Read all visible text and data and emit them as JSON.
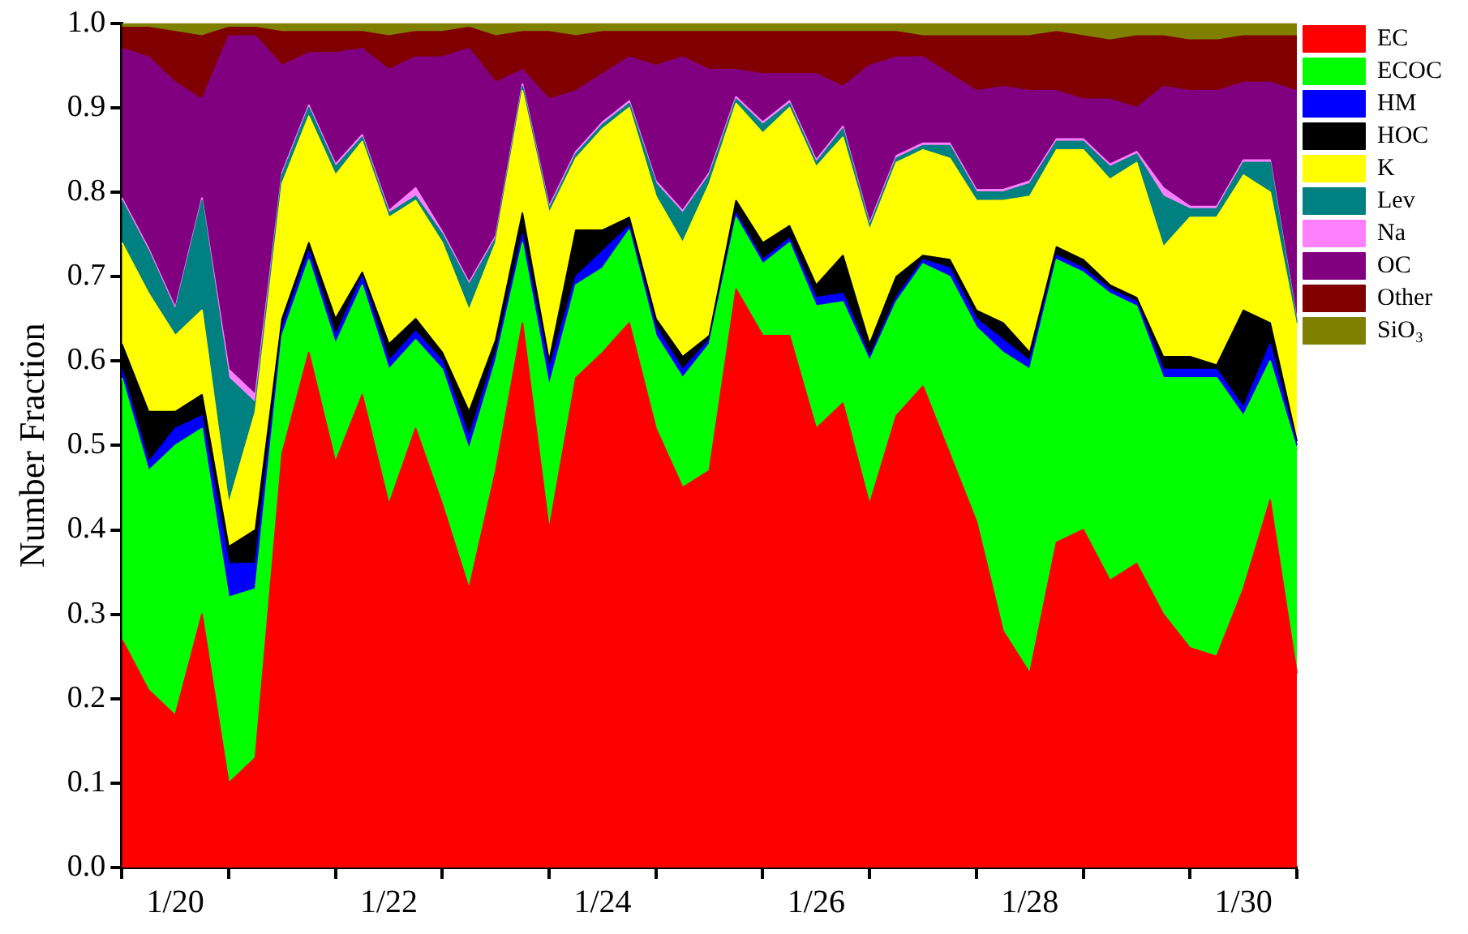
{
  "chart_data": {
    "type": "area",
    "stacked": true,
    "ylabel": "Number Fraction",
    "legend": "right",
    "grid": false,
    "categories": [
      null,
      null,
      "1/20",
      null,
      null,
      null,
      null,
      null,
      null,
      null,
      "1/22",
      null,
      null,
      null,
      null,
      null,
      null,
      null,
      "1/24",
      null,
      null,
      null,
      null,
      null,
      null,
      null,
      "1/26",
      null,
      null,
      null,
      null,
      null,
      null,
      null,
      "1/28",
      null,
      null,
      null,
      null,
      null,
      null,
      null,
      "1/30",
      null,
      null
    ],
    "ylim": [
      0,
      1
    ],
    "yticks": [
      {
        "value": 0,
        "label": "0.0"
      },
      0.1,
      0.2,
      0.3,
      0.4,
      0.5,
      0.6,
      0.7,
      0.8,
      0.9,
      {
        "value": 1,
        "label": "1.0"
      }
    ],
    "series": [
      {
        "name": "EC",
        "color": "#ff0000",
        "values": [
          0.27,
          0.21,
          0.18,
          0.3,
          0.1,
          0.13,
          0.49,
          0.61,
          0.48,
          0.56,
          0.43,
          0.52,
          0.43,
          0.33,
          0.47,
          0.645,
          0.4,
          0.58,
          0.61,
          0.645,
          0.52,
          0.45,
          0.47,
          0.685,
          0.63,
          0.63,
          0.52,
          0.55,
          0.43,
          0.535,
          0.57,
          0.49,
          0.41,
          0.28,
          0.23,
          0.385,
          0.4,
          0.34,
          0.36,
          0.3,
          0.26,
          0.25,
          0.33,
          0.435,
          0.23
        ]
      },
      {
        "name": "ECOC",
        "color": "#00ff00",
        "values": [
          0.31,
          0.26,
          0.32,
          0.22,
          0.22,
          0.2,
          0.14,
          0.11,
          0.14,
          0.13,
          0.16,
          0.105,
          0.16,
          0.165,
          0.13,
          0.095,
          0.17,
          0.11,
          0.1,
          0.11,
          0.11,
          0.13,
          0.15,
          0.085,
          0.085,
          0.11,
          0.145,
          0.12,
          0.17,
          0.135,
          0.145,
          0.21,
          0.23,
          0.33,
          0.36,
          0.335,
          0.305,
          0.34,
          0.305,
          0.28,
          0.32,
          0.33,
          0.205,
          0.165,
          0.265
        ]
      },
      {
        "name": "HM",
        "color": "#0000ff",
        "values": [
          0.01,
          0.01,
          0.02,
          0.015,
          0.04,
          0.03,
          0.01,
          0.01,
          0.01,
          0.01,
          0.01,
          0.01,
          0.01,
          0.015,
          0.01,
          0.01,
          0.02,
          0.01,
          0.02,
          0.005,
          0.01,
          0.01,
          0.005,
          0.005,
          0.005,
          0.005,
          0.01,
          0.01,
          0.005,
          0.005,
          0.005,
          0.01,
          0.01,
          0.015,
          0.01,
          0.005,
          0.005,
          0.005,
          0.005,
          0.01,
          0.01,
          0.01,
          0.01,
          0.02,
          0.005
        ]
      },
      {
        "name": "HOC",
        "color": "#000000",
        "values": [
          0.03,
          0.06,
          0.02,
          0.025,
          0.02,
          0.04,
          0.01,
          0.01,
          0.02,
          0.005,
          0.02,
          0.015,
          0.01,
          0.03,
          0.015,
          0.025,
          0.01,
          0.055,
          0.025,
          0.01,
          0.01,
          0.015,
          0.005,
          0.015,
          0.02,
          0.015,
          0.015,
          0.045,
          0.015,
          0.025,
          0.005,
          0.01,
          0.01,
          0.02,
          0.01,
          0.01,
          0.01,
          0.005,
          0.005,
          0.015,
          0.015,
          0.005,
          0.115,
          0.025,
          0.005
        ]
      },
      {
        "name": "K",
        "color": "#ffff00",
        "values": [
          0.12,
          0.14,
          0.09,
          0.1,
          0.05,
          0.14,
          0.16,
          0.15,
          0.17,
          0.155,
          0.15,
          0.14,
          0.13,
          0.12,
          0.115,
          0.145,
          0.175,
          0.085,
          0.12,
          0.13,
          0.145,
          0.135,
          0.18,
          0.115,
          0.13,
          0.14,
          0.14,
          0.14,
          0.135,
          0.135,
          0.125,
          0.12,
          0.13,
          0.145,
          0.185,
          0.115,
          0.13,
          0.125,
          0.16,
          0.13,
          0.165,
          0.175,
          0.16,
          0.155,
          0.135
        ]
      },
      {
        "name": "Lev",
        "color": "#008080",
        "values": [
          0.05,
          0.05,
          0.03,
          0.13,
          0.15,
          0.01,
          0.01,
          0.01,
          0.01,
          0.005,
          0.005,
          0.005,
          0.01,
          0.03,
          0.005,
          0.005,
          0.005,
          0.005,
          0.005,
          0.005,
          0.015,
          0.035,
          0.01,
          0.005,
          0.01,
          0.005,
          0.005,
          0.01,
          0.005,
          0.005,
          0.005,
          0.015,
          0.01,
          0.01,
          0.015,
          0.01,
          0.01,
          0.015,
          0.01,
          0.06,
          0.01,
          0.01,
          0.015,
          0.035,
          0.005
        ]
      },
      {
        "name": "Na",
        "color": "#ff80ff",
        "values": [
          0.003,
          0.003,
          0.003,
          0.003,
          0.01,
          0.01,
          0.003,
          0.003,
          0.003,
          0.003,
          0.003,
          0.01,
          0.003,
          0.003,
          0.003,
          0.003,
          0.003,
          0.003,
          0.003,
          0.003,
          0.003,
          0.003,
          0.003,
          0.003,
          0.003,
          0.003,
          0.003,
          0.003,
          0.003,
          0.003,
          0.003,
          0.003,
          0.003,
          0.003,
          0.003,
          0.003,
          0.003,
          0.003,
          0.003,
          0.01,
          0.003,
          0.003,
          0.003,
          0.003,
          0.003
        ]
      },
      {
        "name": "OC",
        "color": "#800080",
        "values": [
          0.177,
          0.227,
          0.267,
          0.117,
          0.395,
          0.425,
          0.127,
          0.062,
          0.132,
          0.102,
          0.167,
          0.155,
          0.207,
          0.277,
          0.182,
          0.017,
          0.127,
          0.072,
          0.057,
          0.052,
          0.137,
          0.182,
          0.122,
          0.032,
          0.057,
          0.032,
          0.102,
          0.047,
          0.187,
          0.117,
          0.102,
          0.082,
          0.117,
          0.122,
          0.107,
          0.057,
          0.047,
          0.077,
          0.052,
          0.12,
          0.137,
          0.137,
          0.092,
          0.092,
          0.272
        ]
      },
      {
        "name": "Other",
        "color": "#800000",
        "values": [
          0.025,
          0.035,
          0.06,
          0.075,
          0.01,
          0.01,
          0.04,
          0.025,
          0.025,
          0.02,
          0.04,
          0.03,
          0.03,
          0.025,
          0.055,
          0.045,
          0.08,
          0.065,
          0.05,
          0.03,
          0.04,
          0.03,
          0.045,
          0.045,
          0.05,
          0.05,
          0.05,
          0.065,
          0.04,
          0.03,
          0.025,
          0.045,
          0.065,
          0.06,
          0.065,
          0.07,
          0.075,
          0.07,
          0.085,
          0.06,
          0.06,
          0.06,
          0.055,
          0.055,
          0.065
        ]
      },
      {
        "name": "SiO₃",
        "color": "#808000",
        "values": [
          0.005,
          0.005,
          0.01,
          0.015,
          0.005,
          0.005,
          0.01,
          0.01,
          0.01,
          0.01,
          0.015,
          0.01,
          0.01,
          0.005,
          0.015,
          0.01,
          0.01,
          0.015,
          0.01,
          0.01,
          0.01,
          0.01,
          0.01,
          0.01,
          0.01,
          0.01,
          0.01,
          0.01,
          0.01,
          0.01,
          0.015,
          0.015,
          0.015,
          0.015,
          0.015,
          0.01,
          0.015,
          0.02,
          0.015,
          0.015,
          0.02,
          0.02,
          0.015,
          0.015,
          0.015
        ]
      }
    ]
  }
}
